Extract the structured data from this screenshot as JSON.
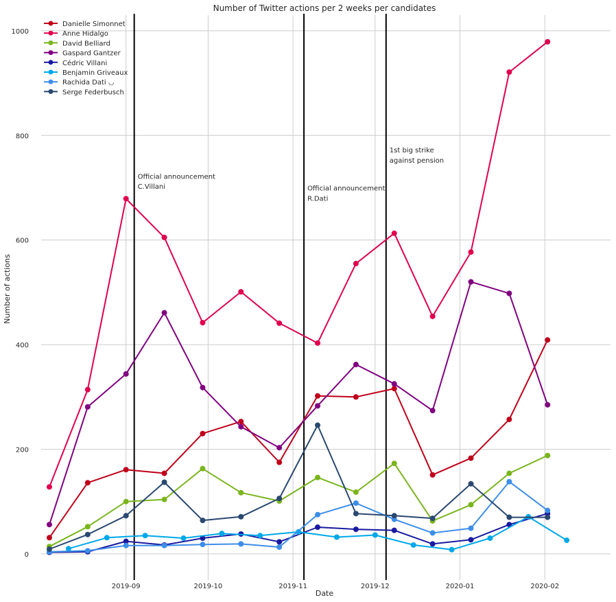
{
  "chart_data": {
    "type": "line",
    "title": "Number of Twitter actions per 2 weeks per candidates",
    "xlabel": "Date",
    "ylabel": "Number of actions",
    "x_axis_kind": "date",
    "xlim": [
      "2019-08-01",
      "2020-02-25"
    ],
    "ylim": [
      -50,
      1030
    ],
    "x_ticks": [
      {
        "date": "2019-09-01",
        "label": "2019-09"
      },
      {
        "date": "2019-10-01",
        "label": "2019-10"
      },
      {
        "date": "2019-11-01",
        "label": "2019-11"
      },
      {
        "date": "2019-12-01",
        "label": "2019-12"
      },
      {
        "date": "2020-01-01",
        "label": "2020-01"
      },
      {
        "date": "2020-02-01",
        "label": "2020-02"
      }
    ],
    "y_ticks": [
      0,
      200,
      400,
      600,
      800,
      1000
    ],
    "grid": true,
    "legend_position": "top-left",
    "series": [
      {
        "name": "Danielle Simonnet",
        "color": "#c0001a",
        "points": [
          {
            "x": "2019-08-04",
            "y": 31
          },
          {
            "x": "2019-08-18",
            "y": 136
          },
          {
            "x": "2019-09-01",
            "y": 161
          },
          {
            "x": "2019-09-15",
            "y": 154
          },
          {
            "x": "2019-09-29",
            "y": 230
          },
          {
            "x": "2019-10-13",
            "y": 253
          },
          {
            "x": "2019-10-27",
            "y": 175
          },
          {
            "x": "2019-11-10",
            "y": 302
          },
          {
            "x": "2019-11-24",
            "y": 300
          },
          {
            "x": "2019-12-08",
            "y": 316
          },
          {
            "x": "2019-12-22",
            "y": 151
          },
          {
            "x": "2020-01-05",
            "y": 183
          },
          {
            "x": "2020-01-19",
            "y": 257
          },
          {
            "x": "2020-02-02",
            "y": 409
          }
        ]
      },
      {
        "name": "Anne Hidalgo",
        "color": "#e0004d",
        "points": [
          {
            "x": "2019-08-04",
            "y": 128
          },
          {
            "x": "2019-08-18",
            "y": 314
          },
          {
            "x": "2019-09-01",
            "y": 679
          },
          {
            "x": "2019-09-15",
            "y": 605
          },
          {
            "x": "2019-09-29",
            "y": 442
          },
          {
            "x": "2019-10-13",
            "y": 501
          },
          {
            "x": "2019-10-27",
            "y": 441
          },
          {
            "x": "2019-11-10",
            "y": 403
          },
          {
            "x": "2019-11-24",
            "y": 555
          },
          {
            "x": "2019-12-08",
            "y": 613
          },
          {
            "x": "2019-12-22",
            "y": 454
          },
          {
            "x": "2020-01-05",
            "y": 577
          },
          {
            "x": "2020-01-19",
            "y": 921
          },
          {
            "x": "2020-02-02",
            "y": 979
          }
        ]
      },
      {
        "name": "David Belliard",
        "color": "#7ab51d",
        "points": [
          {
            "x": "2019-08-04",
            "y": 14
          },
          {
            "x": "2019-08-18",
            "y": 52
          },
          {
            "x": "2019-09-01",
            "y": 100
          },
          {
            "x": "2019-09-15",
            "y": 104
          },
          {
            "x": "2019-09-29",
            "y": 163
          },
          {
            "x": "2019-10-13",
            "y": 117
          },
          {
            "x": "2019-10-27",
            "y": 101
          },
          {
            "x": "2019-11-10",
            "y": 146
          },
          {
            "x": "2019-11-24",
            "y": 118
          },
          {
            "x": "2019-12-08",
            "y": 173
          },
          {
            "x": "2019-12-22",
            "y": 63
          },
          {
            "x": "2020-01-05",
            "y": 94
          },
          {
            "x": "2020-01-19",
            "y": 154
          },
          {
            "x": "2020-02-02",
            "y": 188
          }
        ]
      },
      {
        "name": "Gaspard Gantzer",
        "color": "#800080",
        "points": [
          {
            "x": "2019-08-04",
            "y": 56
          },
          {
            "x": "2019-08-18",
            "y": 281
          },
          {
            "x": "2019-09-01",
            "y": 344
          },
          {
            "x": "2019-09-15",
            "y": 461
          },
          {
            "x": "2019-09-29",
            "y": 318
          },
          {
            "x": "2019-10-13",
            "y": 243
          },
          {
            "x": "2019-10-27",
            "y": 203
          },
          {
            "x": "2019-11-10",
            "y": 283
          },
          {
            "x": "2019-11-24",
            "y": 362
          },
          {
            "x": "2019-12-08",
            "y": 325
          },
          {
            "x": "2019-12-22",
            "y": 274
          },
          {
            "x": "2020-01-05",
            "y": 520
          },
          {
            "x": "2020-01-19",
            "y": 498
          },
          {
            "x": "2020-02-02",
            "y": 285
          }
        ]
      },
      {
        "name": "Cédric Villani",
        "color": "#1a1aa0",
        "points": [
          {
            "x": "2019-08-04",
            "y": 3
          },
          {
            "x": "2019-08-18",
            "y": 4
          },
          {
            "x": "2019-09-01",
            "y": 24
          },
          {
            "x": "2019-09-15",
            "y": 17
          },
          {
            "x": "2019-09-29",
            "y": 30
          },
          {
            "x": "2019-10-13",
            "y": 38
          },
          {
            "x": "2019-10-27",
            "y": 23
          },
          {
            "x": "2019-11-10",
            "y": 51
          },
          {
            "x": "2019-11-24",
            "y": 47
          },
          {
            "x": "2019-12-08",
            "y": 45
          },
          {
            "x": "2019-12-22",
            "y": 19
          },
          {
            "x": "2020-01-05",
            "y": 27
          },
          {
            "x": "2020-01-19",
            "y": 56
          },
          {
            "x": "2020-02-02",
            "y": 77
          }
        ]
      },
      {
        "name": "Benjamin Griveaux",
        "color": "#00a8e8",
        "points": [
          {
            "x": "2019-08-11",
            "y": 10
          },
          {
            "x": "2019-08-25",
            "y": 31
          },
          {
            "x": "2019-09-08",
            "y": 35
          },
          {
            "x": "2019-09-22",
            "y": 30
          },
          {
            "x": "2019-10-06",
            "y": 39
          },
          {
            "x": "2019-10-20",
            "y": 35
          },
          {
            "x": "2019-11-03",
            "y": 42
          },
          {
            "x": "2019-11-17",
            "y": 32
          },
          {
            "x": "2019-12-01",
            "y": 36
          },
          {
            "x": "2019-12-15",
            "y": 17
          },
          {
            "x": "2019-12-29",
            "y": 8
          },
          {
            "x": "2020-01-12",
            "y": 30
          },
          {
            "x": "2020-01-26",
            "y": 71
          },
          {
            "x": "2020-02-09",
            "y": 26
          }
        ]
      },
      {
        "name": "Rachida Dati ◡",
        "color": "#3d8ee8",
        "points": [
          {
            "x": "2019-08-04",
            "y": 4
          },
          {
            "x": "2019-08-18",
            "y": 6
          },
          {
            "x": "2019-09-01",
            "y": 16
          },
          {
            "x": "2019-09-15",
            "y": 16
          },
          {
            "x": "2019-09-29",
            "y": 18
          },
          {
            "x": "2019-10-13",
            "y": 19
          },
          {
            "x": "2019-10-27",
            "y": 13
          },
          {
            "x": "2019-11-10",
            "y": 75
          },
          {
            "x": "2019-11-24",
            "y": 97
          },
          {
            "x": "2019-12-08",
            "y": 66
          },
          {
            "x": "2019-12-22",
            "y": 40
          },
          {
            "x": "2020-01-05",
            "y": 49
          },
          {
            "x": "2020-01-19",
            "y": 138
          },
          {
            "x": "2020-02-02",
            "y": 83
          }
        ]
      },
      {
        "name": "Serge Federbusch",
        "color": "#2a4870",
        "points": [
          {
            "x": "2019-08-04",
            "y": 9
          },
          {
            "x": "2019-08-18",
            "y": 37
          },
          {
            "x": "2019-09-01",
            "y": 73
          },
          {
            "x": "2019-09-15",
            "y": 137
          },
          {
            "x": "2019-09-29",
            "y": 64
          },
          {
            "x": "2019-10-13",
            "y": 71
          },
          {
            "x": "2019-10-27",
            "y": 106
          },
          {
            "x": "2019-11-10",
            "y": 246
          },
          {
            "x": "2019-11-24",
            "y": 77
          },
          {
            "x": "2019-12-08",
            "y": 73
          },
          {
            "x": "2019-12-22",
            "y": 68
          },
          {
            "x": "2020-01-05",
            "y": 134
          },
          {
            "x": "2020-01-19",
            "y": 70
          },
          {
            "x": "2020-02-02",
            "y": 70
          }
        ]
      }
    ],
    "events": [
      {
        "date": "2019-09-04",
        "lines": [
          "Official announcement",
          "C.Villani"
        ],
        "text_y": [
          722,
          703
        ]
      },
      {
        "date": "2019-11-05",
        "lines": [
          "Official announcement",
          "R.Dati"
        ],
        "text_y": [
          700,
          680
        ]
      },
      {
        "date": "2019-12-05",
        "lines": [
          "1st big strike",
          "against pension"
        ],
        "text_y": [
          773,
          753
        ]
      }
    ]
  }
}
